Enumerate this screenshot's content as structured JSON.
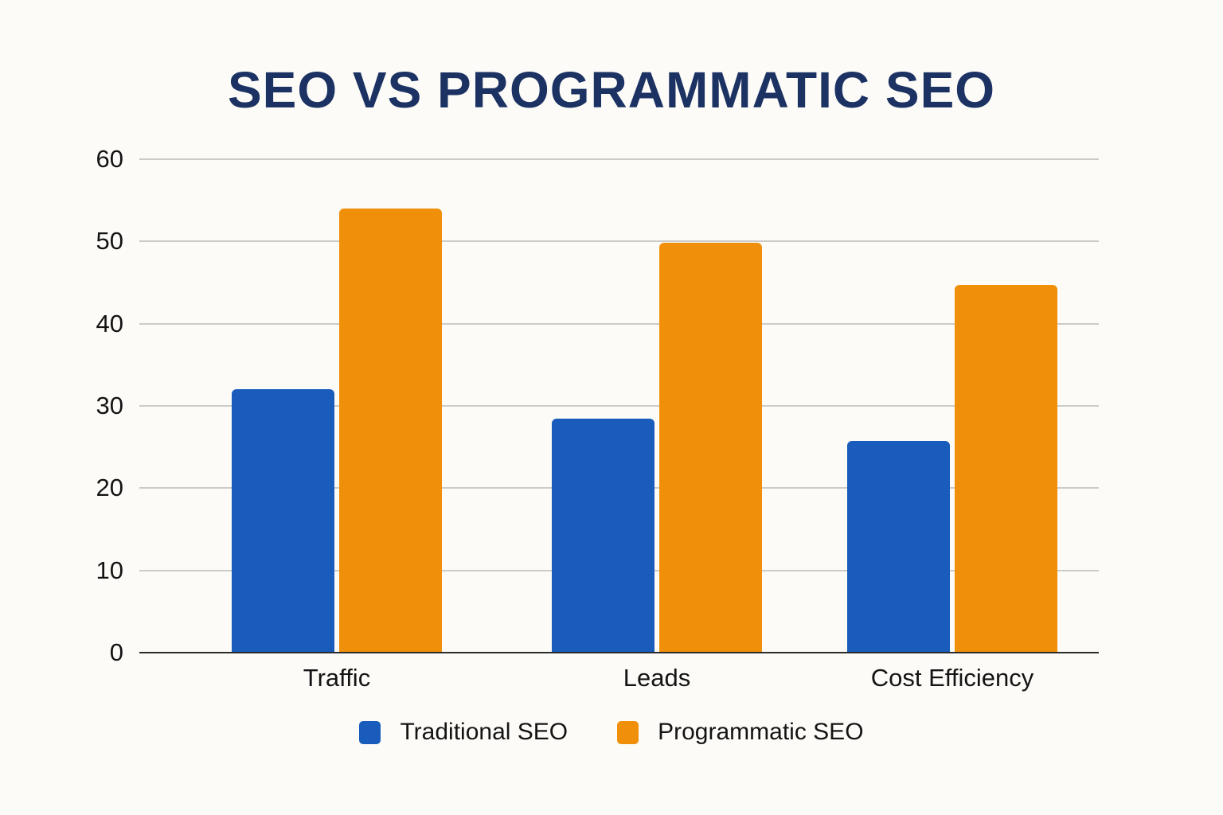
{
  "title": "SEO VS PROGRAMMATIC SEO",
  "chart_data": {
    "type": "bar",
    "title": "SEO VS PROGRAMMATIC SEO",
    "categories": [
      "Traffic",
      "Leads",
      "Cost Efficiency"
    ],
    "series": [
      {
        "name": "Traditional SEO",
        "color": "#1A5CBB",
        "values": [
          32,
          28.5,
          25.7
        ]
      },
      {
        "name": "Programmatic SEO",
        "color": "#F0900A",
        "values": [
          54,
          49.8,
          44.7
        ]
      }
    ],
    "xlabel": "",
    "ylabel": "",
    "ylim": [
      0,
      60
    ],
    "yticks": [
      0,
      10,
      20,
      30,
      40,
      50,
      60
    ],
    "grid": true,
    "legend_position": "bottom"
  },
  "legend": {
    "items": [
      {
        "label": "Traditional SEO",
        "color": "#1A5CBB"
      },
      {
        "label": "Programmatic SEO",
        "color": "#F0900A"
      }
    ]
  },
  "colors": {
    "background": "#FCFBF7",
    "title": "#1B3263",
    "gridline": "#CBCBC9",
    "axis_line": "#2B2B2B",
    "text": "#141414"
  }
}
